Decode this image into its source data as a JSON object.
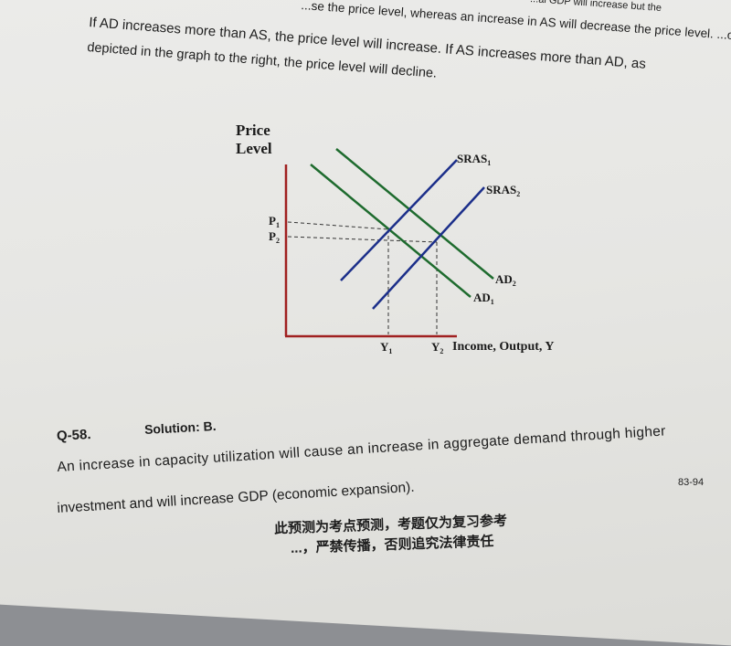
{
  "paragraph": {
    "line1": "...al GDP will increase but the",
    "line2": "...se the price level, whereas an increase in AS will decrease the price level. ...ow the magnitude of the changes because an",
    "line3": "If AD increases more than AS, the price level will increase. If AS increases more than AD, as",
    "line4": "depicted in the graph to the right, the price level will decline."
  },
  "graph": {
    "y_axis_label_1": "Price",
    "y_axis_label_2": "Level",
    "x_axis_label": "Income, Output, Y",
    "curves": {
      "sras1": "SRAS",
      "sras1_sub": "1",
      "sras2": "SRAS",
      "sras2_sub": "2",
      "ad2": "AD",
      "ad2_sub": "2",
      "ad1": "AD",
      "ad1_sub": "1"
    },
    "p1": "P",
    "p1_sub": "1",
    "p2": "P",
    "p2_sub": "2",
    "y1": "Y",
    "y1_sub": "1",
    "y2": "Y",
    "y2_sub": "2",
    "axis_color": "#a02020",
    "as_color": "#1c2f8a",
    "ad_color": "#1e6b2e"
  },
  "question": {
    "number": "Q-58.",
    "solution": "Solution: B."
  },
  "answer": {
    "line1": "An increase in capacity utilization will cause an increase in aggregate demand through higher",
    "line2": "investment and will increase GDP (economic expansion)."
  },
  "page_number": "83-94",
  "footer": {
    "line1": "此预测为考点预测，考题仅为复习参考",
    "line2": "...，严禁传播，否则追究法律责任"
  }
}
